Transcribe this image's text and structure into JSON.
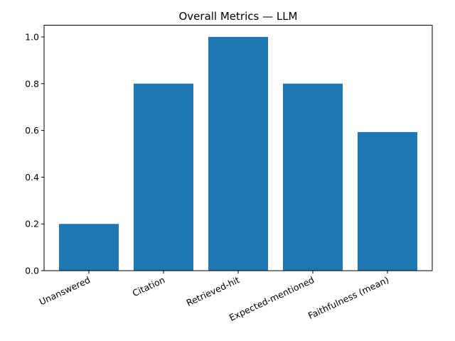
{
  "chart_data": {
    "type": "bar",
    "title": "Overall Metrics — LLM",
    "xlabel": "",
    "ylabel": "",
    "categories": [
      "Unanswered",
      "Citation",
      "Retrieved-hit",
      "Expected-mentioned",
      "Faithfulness (mean)"
    ],
    "values": [
      0.2,
      0.8,
      1.0,
      0.8,
      0.593
    ],
    "ylim": [
      0,
      1.05
    ],
    "yticks": [
      "0.0",
      "0.2",
      "0.4",
      "0.6",
      "0.8",
      "1.0"
    ],
    "bar_color": "#1f77b4",
    "grid": false,
    "legend": "none"
  }
}
